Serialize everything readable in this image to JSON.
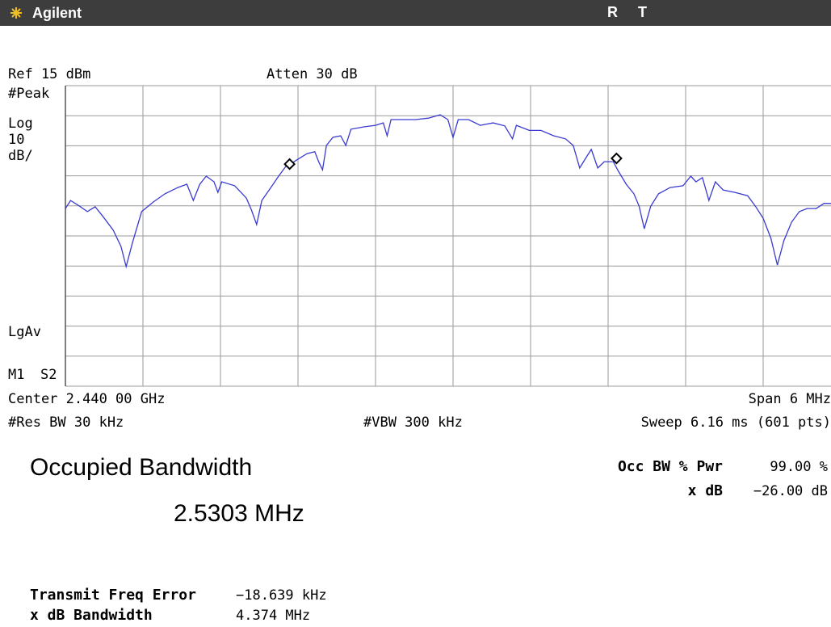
{
  "header": {
    "brand": "Agilent",
    "status": [
      "R",
      "T"
    ]
  },
  "settings": {
    "ref": "Ref 15 dBm",
    "atten": "Atten 30 dB",
    "detector": "#Peak",
    "scale": [
      "Log",
      "10",
      "dB/"
    ],
    "average": "LgAv",
    "trace_mode": [
      "M1",
      "S2"
    ],
    "center": "Center 2.440 00 GHz",
    "span": "Span 6 MHz",
    "rbw": "#Res BW 30 kHz",
    "vbw": "#VBW 300 kHz",
    "sweep": "Sweep 6.16 ms (601 pts)"
  },
  "measurement": {
    "title": "Occupied Bandwidth",
    "value": "2.5303 MHz",
    "params": [
      {
        "label": "Occ BW % Pwr",
        "value": "99.00 %"
      },
      {
        "label": "x dB",
        "value": "−26.00 dB"
      }
    ],
    "results": [
      {
        "label": "Transmit Freq Error",
        "value": "−18.639 kHz"
      },
      {
        "label": "x dB Bandwidth",
        "value": "4.374 MHz"
      }
    ]
  },
  "chart_data": {
    "type": "line",
    "xlim": [
      -3,
      3
    ],
    "ylim": [
      -85,
      15
    ],
    "xticks": [
      -3,
      -2.4,
      -1.8,
      -1.2,
      -0.6,
      0,
      0.6,
      1.2,
      1.8,
      2.4,
      3
    ],
    "yticks": [
      15,
      5,
      -5,
      -15,
      -25,
      -35,
      -45,
      -55,
      -65,
      -75,
      -85
    ],
    "grid": true,
    "series": [
      {
        "color": "#3a3ad2",
        "x": [
          -3.0,
          -2.96,
          -2.89,
          -2.83,
          -2.77,
          -2.71,
          -2.63,
          -2.57,
          -2.53,
          -2.48,
          -2.41,
          -2.32,
          -2.23,
          -2.13,
          -2.06,
          -2.01,
          -1.96,
          -1.91,
          -1.85,
          -1.82,
          -1.79,
          -1.69,
          -1.6,
          -1.56,
          -1.52,
          -1.48,
          -1.41,
          -1.35,
          -1.29,
          -1.23,
          -1.13,
          -1.07,
          -1.04,
          -1.01,
          -0.98,
          -0.93,
          -0.87,
          -0.83,
          -0.79,
          -0.69,
          -0.6,
          -0.54,
          -0.51,
          -0.48,
          -0.38,
          -0.29,
          -0.19,
          -0.1,
          -0.04,
          0.0,
          0.04,
          0.12,
          0.21,
          0.31,
          0.4,
          0.46,
          0.49,
          0.59,
          0.68,
          0.78,
          0.87,
          0.93,
          0.98,
          1.03,
          1.07,
          1.12,
          1.17,
          1.24,
          1.28,
          1.34,
          1.4,
          1.44,
          1.48,
          1.53,
          1.59,
          1.68,
          1.78,
          1.84,
          1.88,
          1.93,
          1.98,
          2.03,
          2.09,
          2.18,
          2.28,
          2.34,
          2.4,
          2.46,
          2.51,
          2.56,
          2.62,
          2.68,
          2.74,
          2.81,
          2.87,
          2.93
        ],
        "values": [
          -25.9,
          -23.2,
          -25.1,
          -26.9,
          -25.3,
          -28.5,
          -33.1,
          -38.5,
          -45.2,
          -37.1,
          -26.9,
          -23.7,
          -21.0,
          -18.9,
          -17.8,
          -23.2,
          -17.8,
          -15.1,
          -17.0,
          -20.5,
          -17.0,
          -18.3,
          -22.4,
          -26.4,
          -31.2,
          -23.2,
          -18.9,
          -15.1,
          -11.6,
          -10.3,
          -7.6,
          -7.0,
          -10.3,
          -13.0,
          -4.9,
          -2.2,
          -1.7,
          -4.9,
          0.5,
          1.3,
          1.8,
          2.6,
          -1.7,
          3.7,
          3.7,
          3.7,
          4.2,
          5.3,
          3.7,
          -2.2,
          3.7,
          3.7,
          1.8,
          2.6,
          1.6,
          -2.7,
          1.8,
          0.1,
          0.1,
          -1.7,
          -2.7,
          -4.9,
          -12.4,
          -8.9,
          -6.2,
          -12.4,
          -10.3,
          -10.3,
          -13.5,
          -17.8,
          -21.0,
          -25.1,
          -32.6,
          -25.1,
          -21.0,
          -18.9,
          -18.3,
          -15.1,
          -17.0,
          -15.6,
          -23.2,
          -17.0,
          -19.7,
          -20.5,
          -21.6,
          -25.1,
          -29.1,
          -35.8,
          -44.7,
          -36.6,
          -30.4,
          -26.9,
          -25.9,
          -25.9,
          -24.2,
          -24.2
        ]
      }
    ],
    "markers": {
      "x": [
        -1.265,
        1.265
      ],
      "values": [
        -11.1,
        -9.2
      ]
    }
  }
}
